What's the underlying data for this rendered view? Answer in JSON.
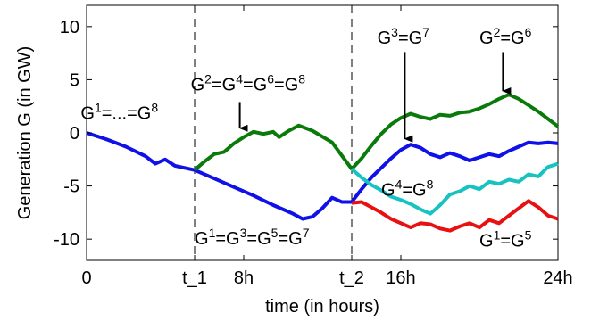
{
  "chart_data": {
    "type": "line",
    "title": "",
    "xlabel": "time (in hours)",
    "ylabel": "Generation G (in GW)",
    "xlim": [
      0,
      24
    ],
    "ylim": [
      -12,
      12
    ],
    "grid": false,
    "xticks": [
      {
        "value": 0,
        "label": "0"
      },
      {
        "value": 5.5,
        "label": "t_1"
      },
      {
        "value": 8,
        "label": "8h"
      },
      {
        "value": 13.5,
        "label": "t_2"
      },
      {
        "value": 16,
        "label": "16h"
      },
      {
        "value": 24,
        "label": "24h"
      }
    ],
    "yticks": [
      {
        "value": 10,
        "label": "10"
      },
      {
        "value": 5,
        "label": "5"
      },
      {
        "value": 0,
        "label": "0"
      },
      {
        "value": -5,
        "label": "-5"
      },
      {
        "value": -10,
        "label": "-10"
      }
    ],
    "vlines": [
      5.5,
      13.5
    ],
    "series": [
      {
        "color": "#1010e8",
        "points": [
          [
            0,
            0
          ],
          [
            1,
            -0.6
          ],
          [
            2,
            -1.3
          ],
          [
            3,
            -2.2
          ],
          [
            3.5,
            -2.9
          ],
          [
            4,
            -2.5
          ],
          [
            4.5,
            -3.1
          ],
          [
            5.5,
            -3.5
          ],
          [
            6.5,
            -4.3
          ],
          [
            7.5,
            -5.1
          ],
          [
            8.5,
            -5.9
          ],
          [
            9.5,
            -6.8
          ],
          [
            10.5,
            -7.6
          ],
          [
            11,
            -8.1
          ],
          [
            11.5,
            -7.9
          ],
          [
            12,
            -7.1
          ],
          [
            12.5,
            -6.1
          ],
          [
            13,
            -6.5
          ],
          [
            13.5,
            -6.5
          ],
          [
            14,
            -5.3
          ],
          [
            14.5,
            -4.2
          ],
          [
            15,
            -3.3
          ],
          [
            15.5,
            -2.4
          ],
          [
            16,
            -1.6
          ],
          [
            16.5,
            -1.1
          ],
          [
            17,
            -1.4
          ],
          [
            17.5,
            -2.0
          ],
          [
            18,
            -2.3
          ],
          [
            18.5,
            -1.9
          ],
          [
            19,
            -2.2
          ],
          [
            19.5,
            -2.6
          ],
          [
            20,
            -2.3
          ],
          [
            20.5,
            -2.0
          ],
          [
            21,
            -2.2
          ],
          [
            21.5,
            -1.7
          ],
          [
            22,
            -1.3
          ],
          [
            22.5,
            -0.9
          ],
          [
            23,
            -1.0
          ],
          [
            23.5,
            -0.9
          ],
          [
            24,
            -1.0
          ]
        ]
      },
      {
        "color": "#0a7a0a",
        "points": [
          [
            5.5,
            -3.5
          ],
          [
            6,
            -2.7
          ],
          [
            6.5,
            -2.0
          ],
          [
            7,
            -1.8
          ],
          [
            7.5,
            -1.0
          ],
          [
            8,
            -0.4
          ],
          [
            8.5,
            0.1
          ],
          [
            9,
            -0.1
          ],
          [
            9.5,
            0.1
          ],
          [
            9.8,
            -0.4
          ],
          [
            10.3,
            0.2
          ],
          [
            10.8,
            0.7
          ],
          [
            11.5,
            0.2
          ],
          [
            12.5,
            -0.9
          ],
          [
            13.5,
            -3.4
          ],
          [
            14,
            -2.4
          ],
          [
            14.5,
            -1.2
          ],
          [
            15,
            -0.1
          ],
          [
            15.5,
            0.8
          ],
          [
            16,
            1.4
          ],
          [
            16.5,
            1.8
          ],
          [
            17,
            1.5
          ],
          [
            17.5,
            1.3
          ],
          [
            18,
            1.7
          ],
          [
            18.5,
            1.6
          ],
          [
            19,
            1.9
          ],
          [
            19.5,
            2.0
          ],
          [
            20,
            2.3
          ],
          [
            20.5,
            2.7
          ],
          [
            21,
            3.2
          ],
          [
            21.5,
            3.6
          ],
          [
            22,
            3.2
          ],
          [
            22.5,
            2.6
          ],
          [
            23,
            2.0
          ],
          [
            23.5,
            1.3
          ],
          [
            24,
            0.6
          ]
        ]
      },
      {
        "color": "#17c2c2",
        "points": [
          [
            13.5,
            -3.4
          ],
          [
            14,
            -4.2
          ],
          [
            14.5,
            -4.9
          ],
          [
            15,
            -5.4
          ],
          [
            15.5,
            -6.0
          ],
          [
            16,
            -6.3
          ],
          [
            16.5,
            -6.7
          ],
          [
            17,
            -7.2
          ],
          [
            17.5,
            -7.6
          ],
          [
            18,
            -6.8
          ],
          [
            18.5,
            -5.8
          ],
          [
            19,
            -5.5
          ],
          [
            19.5,
            -5.0
          ],
          [
            20,
            -5.3
          ],
          [
            20.5,
            -4.6
          ],
          [
            21,
            -4.8
          ],
          [
            21.5,
            -4.4
          ],
          [
            22,
            -4.6
          ],
          [
            22.5,
            -3.9
          ],
          [
            23,
            -4.1
          ],
          [
            23.5,
            -3.2
          ],
          [
            24,
            -2.9
          ]
        ]
      },
      {
        "color": "#e81010",
        "points": [
          [
            13.5,
            -6.6
          ],
          [
            14,
            -6.5
          ],
          [
            14.5,
            -7.0
          ],
          [
            15,
            -7.5
          ],
          [
            15.5,
            -8.1
          ],
          [
            16,
            -8.5
          ],
          [
            16.5,
            -8.9
          ],
          [
            17,
            -8.5
          ],
          [
            17.5,
            -8.6
          ],
          [
            18,
            -9.0
          ],
          [
            18.5,
            -9.2
          ],
          [
            19,
            -8.8
          ],
          [
            19.5,
            -8.5
          ],
          [
            20,
            -8.9
          ],
          [
            20.5,
            -8.2
          ],
          [
            21,
            -8.5
          ],
          [
            21.5,
            -7.8
          ],
          [
            22,
            -7.1
          ],
          [
            22.5,
            -6.4
          ],
          [
            23,
            -7.0
          ],
          [
            23.5,
            -7.8
          ],
          [
            24,
            -8.1
          ]
        ]
      }
    ],
    "annotations": [
      {
        "id": "a1",
        "parts": [
          [
            "G",
            "1"
          ],
          [
            "=...=G",
            "8"
          ]
        ],
        "x": -0.3,
        "y": 1.3
      },
      {
        "id": "a2",
        "parts": [
          [
            "G",
            "2"
          ],
          [
            "=G",
            "4"
          ],
          [
            "=G",
            "6"
          ],
          [
            "=G",
            "8"
          ]
        ],
        "x": 5.3,
        "y": 4.0
      },
      {
        "id": "a3",
        "parts": [
          [
            "G",
            "1"
          ],
          [
            "=G",
            "3"
          ],
          [
            "=G",
            "5"
          ],
          [
            "=G",
            "7"
          ]
        ],
        "x": 5.5,
        "y": -10.5
      },
      {
        "id": "a4",
        "parts": [
          [
            "G",
            "3"
          ],
          [
            "=G",
            "7"
          ]
        ],
        "x": 14.8,
        "y": 8.4
      },
      {
        "id": "a5",
        "parts": [
          [
            "G",
            "2"
          ],
          [
            "=G",
            "6"
          ]
        ],
        "x": 20.0,
        "y": 8.4
      },
      {
        "id": "a6",
        "parts": [
          [
            "G",
            "4"
          ],
          [
            "=G",
            "8"
          ]
        ],
        "x": 15.0,
        "y": -5.9
      },
      {
        "id": "a7",
        "parts": [
          [
            "G",
            "1"
          ],
          [
            "=G",
            "5"
          ]
        ],
        "x": 20.0,
        "y": -10.7
      }
    ],
    "arrows": [
      {
        "from": [
          7.8,
          2.9
        ],
        "to": [
          7.8,
          -0.4
        ]
      },
      {
        "from": [
          16.2,
          7.6
        ],
        "to": [
          16.2,
          -1.4
        ]
      },
      {
        "from": [
          21.2,
          7.6
        ],
        "to": [
          21.2,
          3.1
        ]
      }
    ]
  }
}
